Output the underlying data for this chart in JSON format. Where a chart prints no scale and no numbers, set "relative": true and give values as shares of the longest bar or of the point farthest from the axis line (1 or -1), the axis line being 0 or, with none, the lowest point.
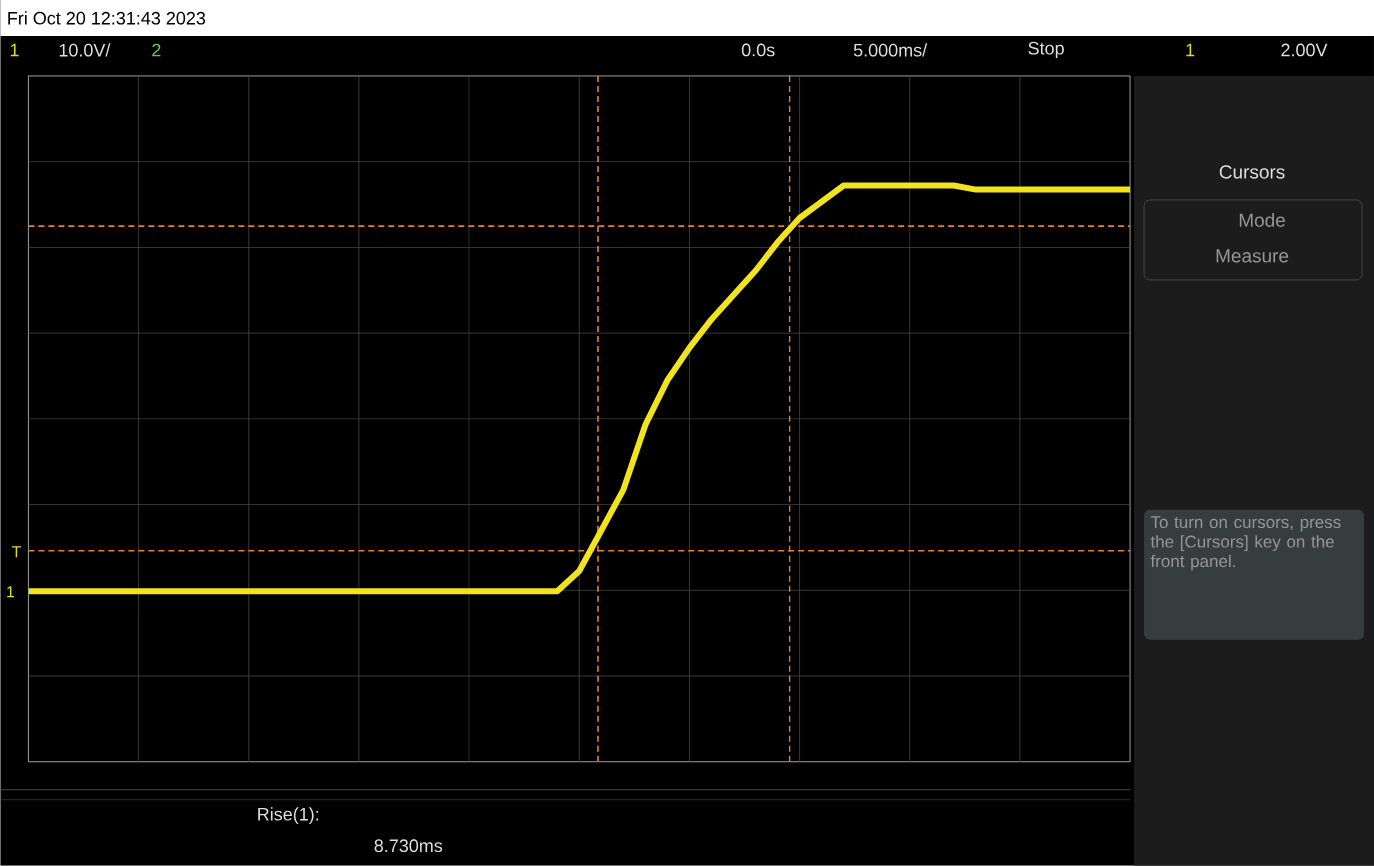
{
  "chart_data": {
    "type": "line",
    "relative": true,
    "categories": [
      null,
      null,
      null,
      null,
      null,
      null,
      null,
      null,
      null,
      null,
      null,
      null,
      null,
      null,
      null,
      null,
      null,
      null,
      null,
      null,
      null,
      null,
      null,
      null,
      null,
      null,
      null,
      null,
      null,
      null,
      null,
      null,
      null,
      null,
      null,
      null,
      null,
      null,
      null,
      null,
      null,
      null,
      null,
      null,
      null,
      null,
      null,
      null,
      null,
      null,
      null
    ],
    "series": [
      {
        "color": "#f2e41c",
        "values": [
          0,
          0,
          0,
          0,
          0,
          0,
          0,
          0,
          0,
          0,
          0,
          0,
          0,
          0,
          0,
          0,
          0,
          0,
          0,
          0,
          0,
          0,
          0,
          0,
          0,
          0.05,
          0.15,
          0.25,
          0.41,
          0.52,
          0.6,
          0.67,
          0.73,
          0.79,
          0.86,
          0.92,
          0.96,
          1,
          1,
          1,
          1,
          1,
          1,
          0.99,
          0.99,
          0.99,
          0.99,
          0.99,
          0.99,
          0.99,
          0.99
        ]
      }
    ],
    "grid": true,
    "marker": "none",
    "line_style": "solid",
    "ref_lines": [
      {
        "axis": "y",
        "value": 0.1,
        "color": "#e8812a",
        "line_style": "dashed"
      },
      {
        "axis": "y",
        "value": 0.9,
        "color": "#e8812a",
        "line_style": "dashed"
      }
    ],
    "annotations": [
      "Fri Oct 20 12:31:43 2023",
      "1",
      "10.0V/",
      "2",
      "0.0s",
      "5.000ms/",
      "Stop",
      "1",
      "2.00V",
      "T",
      "1",
      "Cursors",
      "Mode",
      "Measure",
      "To turn on cursors, press the [Cursors] key on the front panel.",
      "Rise(1):",
      "8.730ms"
    ]
  }
}
